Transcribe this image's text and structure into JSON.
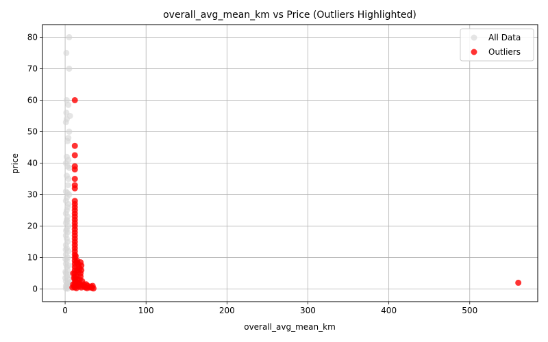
{
  "chart_data": {
    "type": "scatter",
    "title": "overall_avg_mean_km vs Price (Outliers Highlighted)",
    "xlabel": "overall_avg_mean_km",
    "ylabel": "price",
    "xlim": [
      -28,
      584
    ],
    "ylim": [
      -4,
      84
    ],
    "xticks": [
      0,
      100,
      200,
      300,
      400,
      500
    ],
    "yticks": [
      0,
      10,
      20,
      30,
      40,
      50,
      60,
      70,
      80
    ],
    "grid": true,
    "legend_position": "top-right",
    "series": [
      {
        "name": "All Data",
        "color": "#d3d3d3",
        "opacity": 0.6,
        "points": [
          [
            5,
            80
          ],
          [
            1.5,
            75
          ],
          [
            5,
            70
          ],
          [
            2,
            60
          ],
          [
            4,
            58.5
          ],
          [
            1.5,
            56
          ],
          [
            6,
            55
          ],
          [
            2,
            54
          ],
          [
            1,
            53
          ],
          [
            5,
            50
          ],
          [
            4,
            48
          ],
          [
            3,
            47
          ],
          [
            2,
            42
          ],
          [
            4,
            41
          ],
          [
            1,
            40
          ],
          [
            3,
            39
          ],
          [
            5,
            38.5
          ],
          [
            2,
            36
          ],
          [
            4,
            35
          ],
          [
            1,
            31
          ],
          [
            3,
            30.5
          ],
          [
            5,
            30
          ],
          [
            2,
            29
          ],
          [
            1,
            28
          ],
          [
            4,
            27
          ],
          [
            3,
            26
          ],
          [
            2,
            25
          ],
          [
            1,
            24
          ],
          [
            3,
            23
          ],
          [
            2,
            22
          ],
          [
            1,
            21
          ],
          [
            4,
            20
          ],
          [
            2,
            19
          ],
          [
            3,
            18
          ],
          [
            1,
            17
          ],
          [
            2,
            16
          ],
          [
            3,
            15
          ],
          [
            1,
            14
          ],
          [
            2,
            13
          ],
          [
            4,
            12
          ],
          [
            1,
            11
          ],
          [
            3,
            10
          ],
          [
            2,
            9
          ],
          [
            1,
            8
          ],
          [
            2,
            7
          ],
          [
            3,
            6
          ],
          [
            1,
            5
          ],
          [
            2,
            4
          ],
          [
            4,
            3
          ],
          [
            1,
            2.5
          ],
          [
            3,
            2
          ],
          [
            2,
            1.5
          ],
          [
            1,
            1
          ],
          [
            5,
            0.8
          ],
          [
            2,
            0.5
          ],
          [
            1,
            0.2
          ],
          [
            3,
            0.1
          ],
          [
            0.5,
            9.5
          ],
          [
            0.8,
            12.5
          ],
          [
            1.2,
            18.5
          ],
          [
            2.5,
            21.5
          ],
          [
            3.5,
            33
          ],
          [
            0.5,
            5.5
          ],
          [
            4.5,
            7.5
          ],
          [
            0.3,
            3.5
          ],
          [
            6,
            2.2
          ],
          [
            7,
            1.2
          ],
          [
            6.5,
            4.5
          ]
        ]
      },
      {
        "name": "Outliers",
        "color": "#ff0000",
        "opacity": 0.8,
        "points": [
          [
            12,
            60
          ],
          [
            12,
            45.5
          ],
          [
            12,
            42.5
          ],
          [
            12,
            39
          ],
          [
            12,
            38
          ],
          [
            12,
            35
          ],
          [
            12,
            33
          ],
          [
            12,
            32
          ],
          [
            12,
            28
          ],
          [
            12,
            27
          ],
          [
            12,
            26
          ],
          [
            12,
            25
          ],
          [
            12,
            24
          ],
          [
            12,
            23
          ],
          [
            12,
            22
          ],
          [
            12,
            21
          ],
          [
            12,
            20
          ],
          [
            12,
            19
          ],
          [
            12,
            18
          ],
          [
            12,
            17
          ],
          [
            12,
            16
          ],
          [
            12,
            15
          ],
          [
            12,
            14
          ],
          [
            12,
            13
          ],
          [
            12,
            12
          ],
          [
            12,
            11
          ],
          [
            12,
            10
          ],
          [
            12,
            9
          ],
          [
            12,
            8
          ],
          [
            12,
            7
          ],
          [
            12,
            6
          ],
          [
            12,
            5
          ],
          [
            12,
            4
          ],
          [
            12,
            3
          ],
          [
            12,
            2
          ],
          [
            12,
            1
          ],
          [
            12,
            0.5
          ],
          [
            10,
            5
          ],
          [
            11,
            3.5
          ],
          [
            13,
            2.5
          ],
          [
            14,
            4
          ],
          [
            15,
            6
          ],
          [
            16,
            5.5
          ],
          [
            15,
            3
          ],
          [
            17,
            2
          ],
          [
            18,
            1.5
          ],
          [
            19,
            8.5
          ],
          [
            20,
            7.5
          ],
          [
            20,
            6
          ],
          [
            19,
            4
          ],
          [
            18,
            3
          ],
          [
            21,
            2.5
          ],
          [
            22,
            1
          ],
          [
            20,
            0.5
          ],
          [
            17,
            0.8
          ],
          [
            16,
            1.2
          ],
          [
            14,
            0.3
          ],
          [
            23,
            1.5
          ],
          [
            24,
            0.8
          ],
          [
            25,
            0.5
          ],
          [
            26,
            1.5
          ],
          [
            27,
            0.3
          ],
          [
            28,
            1
          ],
          [
            30,
            0.5
          ],
          [
            32,
            0.8
          ],
          [
            34,
            1
          ],
          [
            35,
            0.2
          ],
          [
            33,
            0.4
          ],
          [
            15,
            9
          ],
          [
            16,
            8
          ],
          [
            18,
            6.5
          ],
          [
            19,
            5
          ],
          [
            17,
            7
          ],
          [
            14,
            8.5
          ],
          [
            13,
            10.5
          ],
          [
            10,
            1.5
          ],
          [
            11,
            0.8
          ],
          [
            9,
            0.5
          ],
          [
            560,
            2
          ]
        ]
      }
    ]
  }
}
